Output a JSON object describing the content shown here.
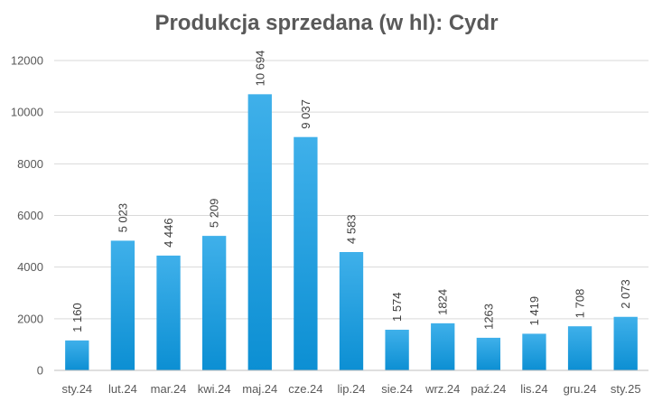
{
  "chart_data": {
    "type": "bar",
    "title": "Produkcja sprzedana (w hl): Cydr",
    "xlabel": "",
    "ylabel": "",
    "ylim": [
      0,
      12000
    ],
    "yticks": [
      0,
      2000,
      4000,
      6000,
      8000,
      10000,
      12000
    ],
    "yticks_text": [
      "0",
      "2000",
      "4000",
      "6000",
      "8000",
      "10000",
      "12000"
    ],
    "grid": true,
    "legend": "none",
    "categories": [
      "sty.24",
      "lut.24",
      "mar.24",
      "kwi.24",
      "maj.24",
      "cze.24",
      "lip.24",
      "sie.24",
      "wrz.24",
      "paź.24",
      "lis.24",
      "gru.24",
      "sty.25"
    ],
    "values": [
      1160,
      5023,
      4446,
      5209,
      10694,
      9037,
      4583,
      1574,
      1824,
      1263,
      1419,
      1708,
      2073
    ],
    "data_labels": [
      "1 160",
      "5 023",
      "4 446",
      "5 209",
      "10 694",
      "9 037",
      "4 583",
      "1 574",
      "1824",
      "1263",
      "1 419",
      "1 708",
      "2 073"
    ],
    "colors": {
      "bar_top": "#3FB0EA",
      "bar_bottom": "#0C8FD3",
      "grid": "#D9D9D9",
      "axis": "#BFBFBF",
      "text": "#595959"
    }
  }
}
